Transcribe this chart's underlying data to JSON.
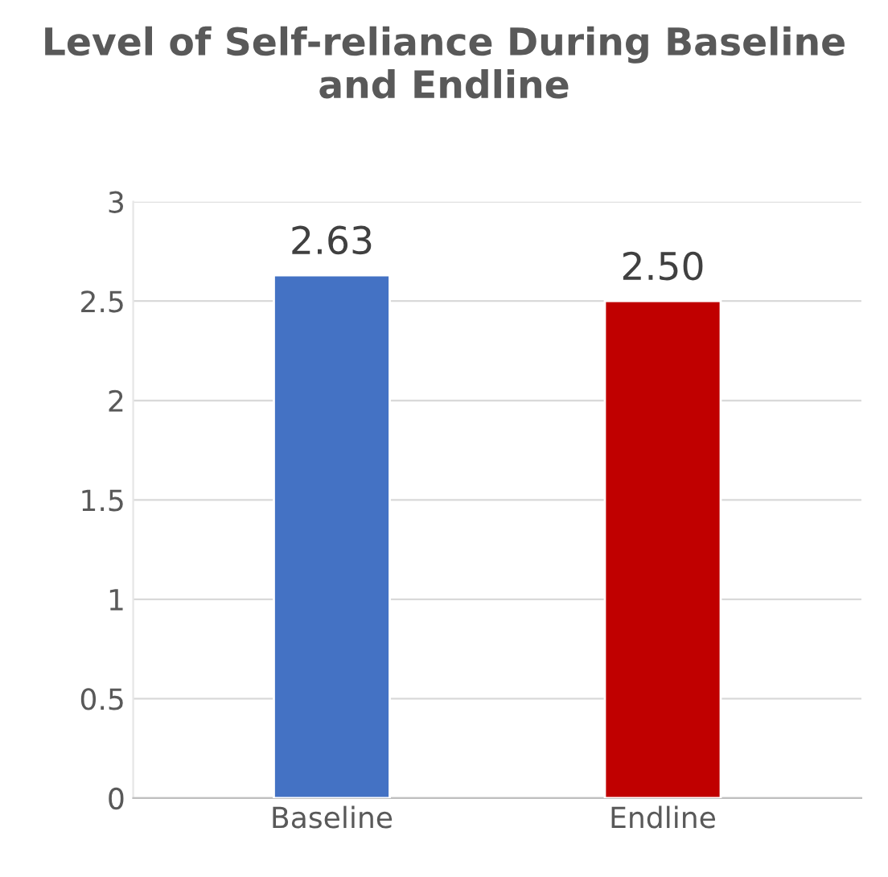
{
  "chart_data": {
    "type": "bar",
    "title": "Level of Self-reliance During Baseline and Endline",
    "categories": [
      "Baseline",
      "Endline"
    ],
    "values": [
      2.63,
      2.5
    ],
    "value_labels": [
      "2.63",
      "2.50"
    ],
    "colors": [
      "#4472c4",
      "#c00000"
    ],
    "ylim": [
      0,
      3
    ],
    "yticks": [
      0,
      0.5,
      1,
      1.5,
      2,
      2.5,
      3
    ],
    "grid": "y"
  }
}
